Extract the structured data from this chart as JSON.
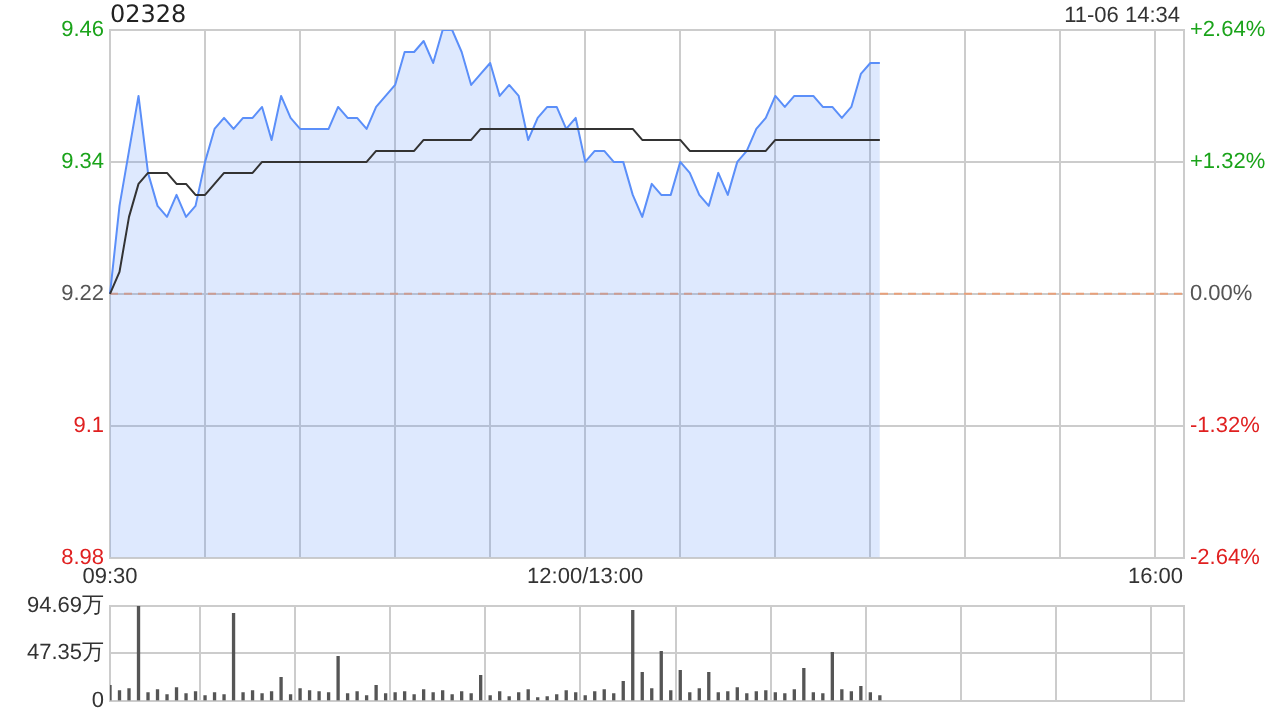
{
  "chart_data": [
    {
      "type": "area",
      "title": "02328",
      "annotations": [
        "11-06 14:34"
      ],
      "categories": [
        "09:30",
        null,
        null,
        null,
        null,
        null,
        null,
        null,
        null,
        null,
        null,
        null,
        null,
        null,
        null,
        null,
        null,
        null,
        null,
        null,
        null,
        null,
        null,
        null,
        null,
        null,
        null,
        null,
        null,
        null,
        null,
        null,
        null,
        null,
        null,
        null,
        null,
        null,
        null,
        null,
        null,
        null,
        null,
        null,
        null,
        null,
        null,
        null,
        null,
        null,
        "12:00/13:00",
        null,
        null,
        null,
        null,
        null,
        null,
        null,
        null,
        null,
        null,
        null,
        null,
        null,
        null,
        null,
        null,
        null,
        null,
        null,
        null,
        null,
        null,
        null,
        null,
        null,
        null,
        null,
        null,
        null,
        null,
        null,
        null,
        null,
        null,
        null,
        null,
        null,
        null,
        null,
        null,
        null,
        null,
        null,
        null,
        null,
        null,
        null,
        null,
        null,
        null,
        null,
        null,
        null,
        null,
        null,
        null,
        null,
        null,
        null,
        "16:00",
        null,
        null,
        null
      ],
      "ylim": [
        8.98,
        9.46
      ],
      "yticks": [
        8.98,
        9.1,
        9.22,
        9.34,
        9.46
      ],
      "y2lim": [
        -2.64,
        2.64
      ],
      "y2ticks": [
        {
          "value": -2.64,
          "label": "-2.64%"
        },
        {
          "value": -1.32,
          "label": "-1.32%"
        },
        {
          "value": 0,
          "label": "0.00%"
        },
        {
          "value": 1.32,
          "label": "+1.32%"
        },
        {
          "value": 2.64,
          "label": "+2.64%"
        }
      ],
      "grid": true,
      "legend": false,
      "ref_lines": [
        {
          "axis": "y",
          "value": 9.22,
          "color": "#e8a07a",
          "line_style": "dashed"
        }
      ],
      "series": [
        {
          "color": "#5b8ff9",
          "values": [
            9.22,
            9.3,
            9.35,
            9.4,
            9.33,
            9.3,
            9.29,
            9.31,
            9.29,
            9.3,
            9.34,
            9.37,
            9.38,
            9.37,
            9.38,
            9.38,
            9.39,
            9.36,
            9.4,
            9.38,
            9.37,
            9.37,
            9.37,
            9.37,
            9.39,
            9.38,
            9.38,
            9.37,
            9.39,
            9.4,
            9.41,
            9.44,
            9.44,
            9.45,
            9.43,
            9.46,
            9.46,
            9.44,
            9.41,
            9.42,
            9.43,
            9.4,
            9.41,
            9.4,
            9.36,
            9.38,
            9.39,
            9.39,
            9.37,
            9.38,
            9.34,
            9.35,
            9.35,
            9.34,
            9.34,
            9.31,
            9.29,
            9.32,
            9.31,
            9.31,
            9.34,
            9.33,
            9.31,
            9.3,
            9.33,
            9.31,
            9.34,
            9.35,
            9.37,
            9.38,
            9.4,
            9.39,
            9.4,
            9.4,
            9.4,
            9.39,
            9.39,
            9.38,
            9.39,
            9.42,
            9.43,
            9.43,
            null,
            null,
            null,
            null,
            null,
            null,
            null,
            null,
            null,
            null,
            null,
            null,
            null,
            null,
            null,
            null,
            null,
            null,
            null,
            null,
            null,
            null,
            null,
            null,
            null,
            null,
            null,
            null,
            null,
            null,
            null,
            null
          ]
        },
        {
          "type": "line",
          "color": "#333333",
          "values": [
            9.22,
            9.24,
            9.29,
            9.32,
            9.33,
            9.33,
            9.33,
            9.32,
            9.32,
            9.31,
            9.31,
            9.32,
            9.33,
            9.33,
            9.33,
            9.33,
            9.34,
            9.34,
            9.34,
            9.34,
            9.34,
            9.34,
            9.34,
            9.34,
            9.34,
            9.34,
            9.34,
            9.34,
            9.35,
            9.35,
            9.35,
            9.35,
            9.35,
            9.36,
            9.36,
            9.36,
            9.36,
            9.36,
            9.36,
            9.37,
            9.37,
            9.37,
            9.37,
            9.37,
            9.37,
            9.37,
            9.37,
            9.37,
            9.37,
            9.37,
            9.37,
            9.37,
            9.37,
            9.37,
            9.37,
            9.37,
            9.36,
            9.36,
            9.36,
            9.36,
            9.36,
            9.35,
            9.35,
            9.35,
            9.35,
            9.35,
            9.35,
            9.35,
            9.35,
            9.35,
            9.36,
            9.36,
            9.36,
            9.36,
            9.36,
            9.36,
            9.36,
            9.36,
            9.36,
            9.36,
            9.36,
            9.36,
            null,
            null,
            null,
            null,
            null,
            null,
            null,
            null,
            null,
            null,
            null,
            null,
            null,
            null,
            null,
            null,
            null,
            null,
            null,
            null,
            null,
            null,
            null,
            null,
            null,
            null,
            null,
            null,
            null,
            null,
            null,
            null
          ]
        }
      ]
    },
    {
      "type": "bar",
      "tick_labels": "y",
      "grid": true,
      "legend": false,
      "categories": [
        null,
        null,
        null,
        null,
        null,
        null,
        null,
        null,
        null,
        null,
        null,
        null,
        null,
        null,
        null,
        null,
        null,
        null,
        null,
        null,
        null,
        null,
        null,
        null,
        null,
        null,
        null,
        null,
        null,
        null,
        null,
        null,
        null,
        null,
        null,
        null,
        null,
        null,
        null,
        null,
        null,
        null,
        null,
        null,
        null,
        null,
        null,
        null,
        null,
        null,
        null,
        null,
        null,
        null,
        null,
        null,
        null,
        null,
        null,
        null,
        null,
        null,
        null,
        null,
        null,
        null,
        null,
        null,
        null,
        null,
        null,
        null,
        null,
        null,
        null,
        null,
        null,
        null,
        null,
        null,
        null,
        null,
        null,
        null,
        null,
        null,
        null,
        null,
        null,
        null,
        null,
        null,
        null,
        null,
        null,
        null,
        null,
        null,
        null,
        null,
        null,
        null,
        null,
        null,
        null,
        null,
        null,
        null,
        null,
        null,
        null,
        null,
        null,
        null
      ],
      "ylim": [
        0,
        94.69
      ],
      "yticks": [
        0,
        {
          "value": 47.35,
          "label": "47.35万"
        },
        {
          "value": 94.69,
          "label": "94.69万"
        }
      ],
      "series": [
        {
          "color": "#555555",
          "values": [
            15,
            10,
            12,
            94,
            8,
            11,
            6,
            13,
            7,
            9,
            5,
            8,
            6,
            87,
            8,
            10,
            7,
            9,
            23,
            6,
            12,
            10,
            9,
            8,
            44,
            7,
            9,
            5,
            15,
            7,
            8,
            9,
            6,
            11,
            8,
            10,
            6,
            9,
            7,
            25,
            5,
            9,
            4,
            8,
            11,
            3,
            4,
            6,
            10,
            8,
            5,
            9,
            11,
            7,
            19,
            90,
            28,
            12,
            49,
            10,
            30,
            8,
            12,
            28,
            8,
            9,
            13,
            7,
            9,
            10,
            8,
            7,
            11,
            32,
            8,
            7,
            48,
            11,
            9,
            14,
            8,
            5,
            null,
            null,
            null,
            null,
            null,
            null,
            null,
            null,
            null,
            null,
            null,
            null,
            null,
            null,
            null,
            null,
            null,
            null,
            null,
            null,
            null,
            null,
            null,
            null,
            null,
            null,
            null,
            null,
            null,
            null,
            null,
            null
          ]
        }
      ]
    }
  ]
}
